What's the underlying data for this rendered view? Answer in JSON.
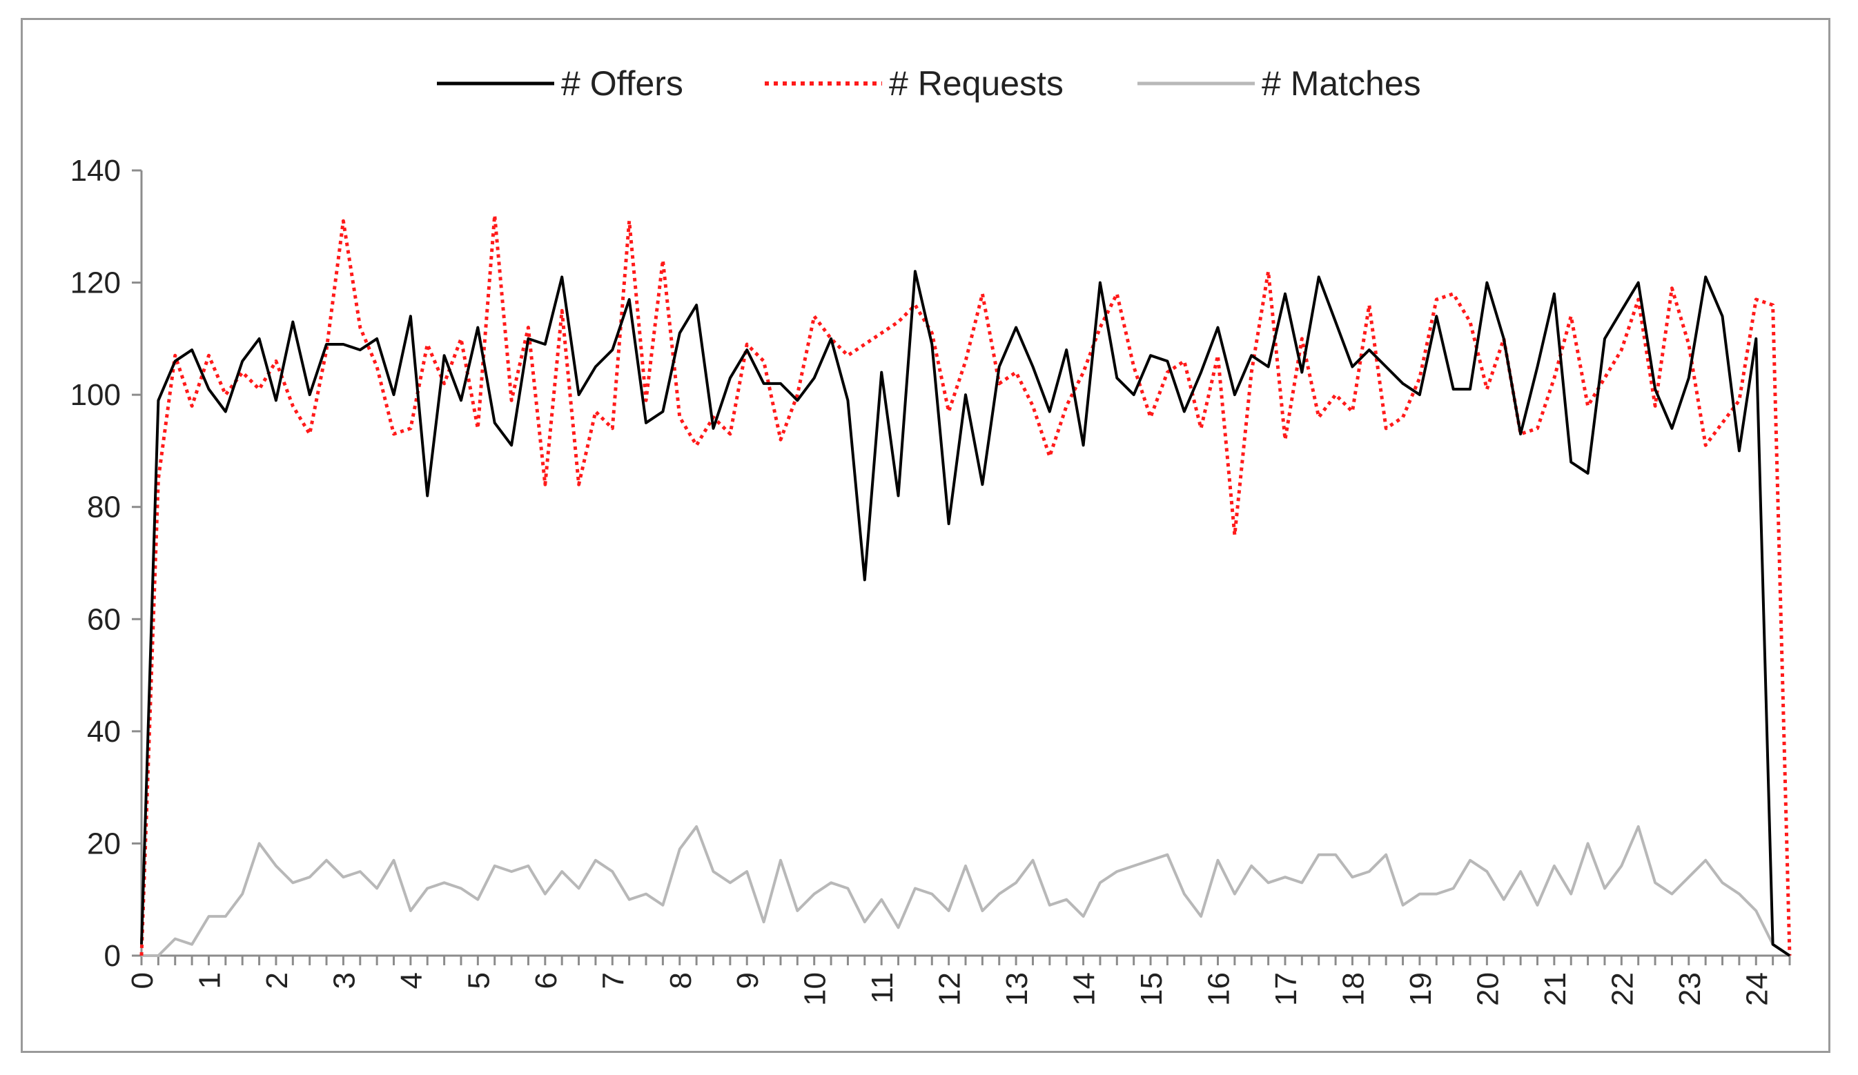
{
  "chart_data": {
    "type": "line",
    "xlim": [
      0,
      24.5
    ],
    "ylim": [
      0,
      140
    ],
    "yticks": [
      0,
      20,
      40,
      60,
      80,
      100,
      120,
      140
    ],
    "xticks": [
      0,
      1,
      2,
      3,
      4,
      5,
      6,
      7,
      8,
      9,
      10,
      11,
      12,
      13,
      14,
      15,
      16,
      17,
      18,
      19,
      20,
      21,
      22,
      23,
      24
    ],
    "grid": false,
    "legend_position": "top",
    "x": [
      0,
      0.25,
      0.5,
      0.75,
      1,
      1.25,
      1.5,
      1.75,
      2,
      2.25,
      2.5,
      2.75,
      3,
      3.25,
      3.5,
      3.75,
      4,
      4.25,
      4.5,
      4.75,
      5,
      5.25,
      5.5,
      5.75,
      6,
      6.25,
      6.5,
      6.75,
      7,
      7.25,
      7.5,
      7.75,
      8,
      8.25,
      8.5,
      8.75,
      9,
      9.25,
      9.5,
      9.75,
      10,
      10.25,
      10.5,
      10.75,
      11,
      11.25,
      11.5,
      11.75,
      12,
      12.25,
      12.5,
      12.75,
      13,
      13.25,
      13.5,
      13.75,
      14,
      14.25,
      14.5,
      14.75,
      15,
      15.25,
      15.5,
      15.75,
      16,
      16.25,
      16.5,
      16.75,
      17,
      17.25,
      17.5,
      17.75,
      18,
      18.25,
      18.5,
      18.75,
      19,
      19.25,
      19.5,
      19.75,
      20,
      20.25,
      20.5,
      20.75,
      21,
      21.25,
      21.5,
      21.75,
      22,
      22.25,
      22.5,
      22.75,
      23,
      23.25,
      23.5,
      23.75,
      24,
      24.25,
      24.5
    ],
    "series": [
      {
        "name": "# Offers",
        "color": "#000000",
        "style": "solid",
        "values": [
          2,
          99,
          106,
          108,
          101,
          97,
          106,
          110,
          99,
          113,
          100,
          109,
          109,
          108,
          110,
          100,
          114,
          82,
          107,
          99,
          112,
          95,
          91,
          110,
          109,
          121,
          100,
          105,
          108,
          117,
          95,
          97,
          111,
          116,
          94,
          103,
          108,
          102,
          102,
          99,
          103,
          110,
          99,
          67,
          104,
          82,
          122,
          109,
          77,
          100,
          84,
          105,
          112,
          105,
          97,
          108,
          91,
          120,
          103,
          100,
          107,
          106,
          97,
          104,
          112,
          100,
          107,
          105,
          118,
          104,
          121,
          113,
          105,
          108,
          105,
          102,
          100,
          114,
          101,
          101,
          120,
          110,
          93,
          105,
          118,
          88,
          86,
          110,
          115,
          120,
          101,
          94,
          103,
          121,
          114,
          90,
          110,
          2,
          0
        ]
      },
      {
        "name": "# Requests",
        "color": "#ff1a1a",
        "style": "dotted",
        "values": [
          0,
          85,
          107,
          98,
          107,
          100,
          104,
          101,
          106,
          98,
          93,
          108,
          131,
          112,
          105,
          93,
          94,
          109,
          102,
          110,
          94,
          132,
          99,
          112,
          84,
          115,
          84,
          97,
          94,
          131,
          99,
          124,
          96,
          91,
          96,
          93,
          109,
          106,
          92,
          100,
          114,
          110,
          107,
          109,
          111,
          113,
          116,
          111,
          97,
          106,
          118,
          102,
          104,
          98,
          89,
          98,
          104,
          112,
          118,
          105,
          96,
          104,
          106,
          94,
          107,
          75,
          104,
          122,
          92,
          110,
          96,
          100,
          97,
          116,
          94,
          96,
          103,
          117,
          118,
          113,
          101,
          110,
          93,
          94,
          103,
          114,
          98,
          103,
          108,
          117,
          98,
          119,
          109,
          91,
          95,
          99,
          117,
          116,
          0
        ]
      },
      {
        "name": "# Matches",
        "color": "#b8b8b8",
        "style": "solid",
        "values": [
          0,
          0,
          3,
          2,
          7,
          7,
          11,
          20,
          16,
          13,
          14,
          17,
          14,
          15,
          12,
          17,
          8,
          12,
          13,
          12,
          10,
          16,
          15,
          16,
          11,
          15,
          12,
          17,
          15,
          10,
          11,
          9,
          19,
          23,
          15,
          13,
          15,
          6,
          17,
          8,
          11,
          13,
          12,
          6,
          10,
          5,
          12,
          11,
          8,
          16,
          8,
          11,
          13,
          17,
          9,
          10,
          7,
          13,
          15,
          16,
          17,
          18,
          11,
          7,
          17,
          11,
          16,
          13,
          14,
          13,
          18,
          18,
          14,
          15,
          18,
          9,
          11,
          11,
          12,
          17,
          15,
          10,
          15,
          9,
          16,
          11,
          20,
          12,
          16,
          23,
          13,
          11,
          14,
          17,
          13,
          11,
          8,
          2,
          0
        ]
      }
    ]
  }
}
